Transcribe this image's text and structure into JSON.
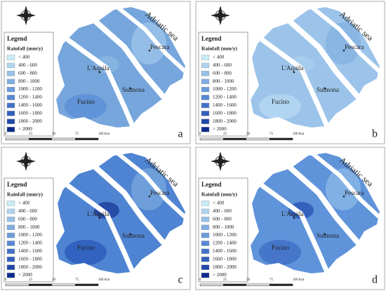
{
  "legend": {
    "title": "Legend",
    "subtitle": "Rainfall (mm/y)",
    "items": [
      "< 400",
      "400 - 600",
      "600 - 800",
      "800 - 1000",
      "1000 - 1200",
      "1200 - 1400",
      "1400 - 1600",
      "1600 - 1800",
      "1800 - 2000",
      "> 2000"
    ],
    "colors": [
      "#c6ecf7",
      "#aed4ee",
      "#96c0e8",
      "#7eaee2",
      "#6a9cdc",
      "#5688d4",
      "#4372c8",
      "#3260bb",
      "#2048a8",
      "#0c2a8c"
    ]
  },
  "places": {
    "sea": "Adriatic sea",
    "pescara": "Pescara",
    "aquila": "L'Aquila",
    "sulmona": "Sulmona",
    "fucino": "Fucino"
  },
  "scale": [
    "0",
    "25",
    "50",
    "75",
    "100 Km"
  ],
  "panels": [
    {
      "label": "a",
      "base": "#76a6dc",
      "spots": [
        "#5b8fd6",
        "#9cc3ea",
        "#8ab6e4"
      ]
    },
    {
      "label": "b",
      "base": "#9cc4ea",
      "spots": [
        "#b6daf2",
        "#86b3e2",
        "#aad0ef"
      ]
    },
    {
      "label": "c",
      "base": "#4f84d2",
      "spots": [
        "#2c5bbd",
        "#76a6dc",
        "#1d3f9e"
      ]
    },
    {
      "label": "d",
      "base": "#5f93da",
      "spots": [
        "#3f6fc6",
        "#8ab8e6",
        "#2a55b6"
      ]
    }
  ]
}
